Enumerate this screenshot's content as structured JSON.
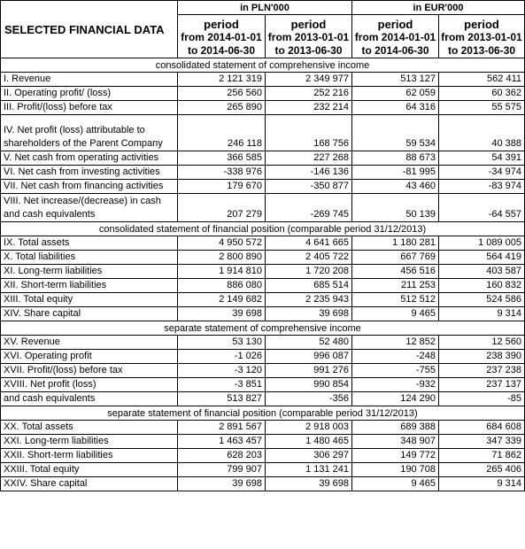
{
  "header": {
    "title": "SELECTED FINANCIAL DATA",
    "unit_pln": "in PLN'000",
    "unit_eur": "in EUR'000",
    "periods": [
      {
        "line1": "period",
        "line2": "from 2014-01-01",
        "line3": "to 2014-06-30"
      },
      {
        "line1": "period",
        "line2": "from 2013-01-01",
        "line3": "to 2013-06-30"
      },
      {
        "line1": "period",
        "line2": "from 2014-01-01",
        "line3": "to 2014-06-30"
      },
      {
        "line1": "period",
        "line2": "from 2013-01-01",
        "line3": "to 2013-06-30"
      }
    ]
  },
  "sections": [
    {
      "title": "consolidated statement of comprehensive income",
      "rows": [
        {
          "label": [
            "I. Revenue"
          ],
          "values": [
            "2 121 319",
            "2 349 977",
            "513 127",
            "562 411"
          ]
        },
        {
          "label": [
            "II. Operating profit/ (loss)"
          ],
          "values": [
            "256 560",
            "252 216",
            "62 059",
            "60 362"
          ]
        },
        {
          "label": [
            "III. Profit/(loss) before tax"
          ],
          "values": [
            "265 890",
            "232 214",
            "64 316",
            "55 575"
          ]
        },
        {
          "label": [
            "IV.  Net profit (loss) attributable to",
            "shareholders of the Parent Company"
          ],
          "values": [
            "246 118",
            "168 756",
            "59 534",
            "40 388"
          ]
        },
        {
          "label": [
            "V. Net cash from operating activities"
          ],
          "values": [
            "366 585",
            "227 268",
            "88 673",
            "54 391"
          ]
        },
        {
          "label": [
            "VI. Net cash from investing activities"
          ],
          "values": [
            "-338 976",
            "-146 136",
            "-81 995",
            "-34 974"
          ]
        },
        {
          "label": [
            "VII. Net cash from financing activities"
          ],
          "values": [
            "179 670",
            "-350 877",
            "43 460",
            "-83 974"
          ]
        },
        {
          "label": [
            "VIII.  Net increase/(decrease) in cash",
            "and cash equivalents"
          ],
          "values": [
            "207 279",
            "-269 745",
            "50 139",
            "-64 557"
          ]
        }
      ]
    },
    {
      "title": "consolidated statement of financial position (comparable period 31/12/2013)",
      "rows": [
        {
          "label": [
            "IX. Total assets"
          ],
          "values": [
            "4 950 572",
            "4 641 665",
            "1 180 281",
            "1 089 005"
          ]
        },
        {
          "label": [
            "X.  Total liabilities"
          ],
          "values": [
            "2 800 890",
            "2 405 722",
            "667 769",
            "564 419"
          ]
        },
        {
          "label": [
            "XI. Long-term liabilities"
          ],
          "values": [
            "1 914 810",
            "1 720 208",
            "456 516",
            "403 587"
          ]
        },
        {
          "label": [
            "XII. Short-term liabilities"
          ],
          "values": [
            "886 080",
            "685 514",
            "211 253",
            "160 832"
          ]
        },
        {
          "label": [
            "XIII.  Total equity"
          ],
          "values": [
            "2 149 682",
            "2 235 943",
            "512 512",
            "524 586"
          ]
        },
        {
          "label": [
            "XIV. Share capital"
          ],
          "values": [
            "39 698",
            "39 698",
            "9 465",
            "9 314"
          ]
        }
      ]
    },
    {
      "title": "separate statement of comprehensive income",
      "rows": [
        {
          "label": [
            "XV. Revenue"
          ],
          "values": [
            "53 130",
            "52 480",
            "12 852",
            "12 560"
          ]
        },
        {
          "label": [
            "XVI.  Operating profit"
          ],
          "values": [
            "-1 026",
            "996 087",
            "-248",
            "238 390"
          ]
        },
        {
          "label": [
            "XVII. Profit/(loss) before tax"
          ],
          "values": [
            "-3 120",
            "991 276",
            "-755",
            "237 238"
          ]
        },
        {
          "label": [
            "XVIII.  Net profit (loss)"
          ],
          "values": [
            "-3 851",
            "990 854",
            "-932",
            "237 137"
          ]
        },
        {
          "label": [
            "and cash equivalents"
          ],
          "values": [
            "513 827",
            "-356",
            "124 290",
            "-85"
          ]
        }
      ]
    },
    {
      "title": "separate statement of financial position (comparable period 31/12/2013)",
      "rows": [
        {
          "label": [
            "XX. Total assets"
          ],
          "values": [
            "2 891 567",
            "2 918 003",
            "689 388",
            "684 608"
          ]
        },
        {
          "label": [
            "XXI. Long-term liabilities"
          ],
          "values": [
            "1 463 457",
            "1 480 465",
            "348 907",
            "347 339"
          ]
        },
        {
          "label": [
            "XXII. Short-term liabilities"
          ],
          "values": [
            "628 203",
            "306 297",
            "149 772",
            "71 862"
          ]
        },
        {
          "label": [
            "XXIII. Total equity"
          ],
          "values": [
            "799 907",
            "1 131 241",
            "190 708",
            "265 406"
          ]
        },
        {
          "label": [
            "XXIV. Share capital"
          ],
          "values": [
            "39 698",
            "39 698",
            "9 465",
            "9 314"
          ]
        }
      ]
    }
  ]
}
